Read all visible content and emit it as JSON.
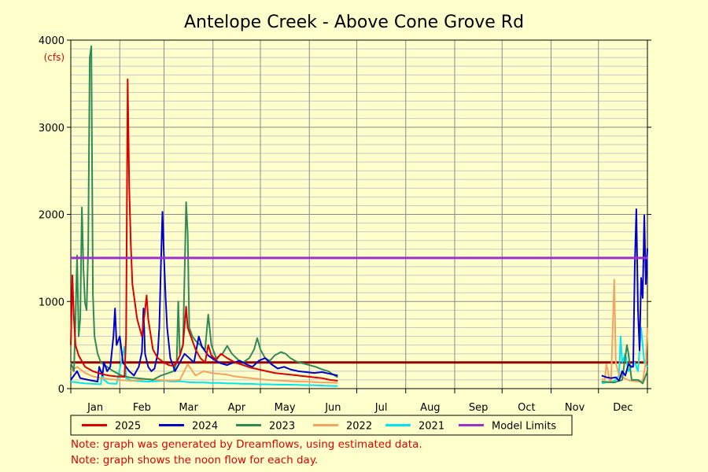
{
  "chart_data": {
    "type": "line",
    "title": "Antelope Creek - Above Cone Grove Rd",
    "ylabel": "(cfs)",
    "xlabel": "",
    "ylim": [
      0,
      4000
    ],
    "yticks": [
      0,
      1000,
      2000,
      3000,
      4000
    ],
    "months": [
      "Jan",
      "Feb",
      "Mar",
      "Apr",
      "May",
      "Jun",
      "Jul",
      "Aug",
      "Sep",
      "Oct",
      "Nov",
      "Dec"
    ],
    "xlim_day": [
      1,
      366
    ],
    "grid": true,
    "legend_position": "bottom",
    "series": [
      {
        "name": "2025",
        "color": "#dd0000",
        "points": [
          [
            1,
            500
          ],
          [
            2,
            1300
          ],
          [
            3,
            800
          ],
          [
            4,
            500
          ],
          [
            6,
            380
          ],
          [
            10,
            250
          ],
          [
            15,
            200
          ],
          [
            20,
            170
          ],
          [
            25,
            150
          ],
          [
            30,
            140
          ],
          [
            35,
            135
          ],
          [
            36,
            600
          ],
          [
            37,
            3550
          ],
          [
            38,
            2300
          ],
          [
            39,
            1650
          ],
          [
            40,
            1200
          ],
          [
            43,
            800
          ],
          [
            46,
            600
          ],
          [
            48,
            900
          ],
          [
            49,
            1070
          ],
          [
            50,
            800
          ],
          [
            53,
            450
          ],
          [
            56,
            350
          ],
          [
            60,
            300
          ],
          [
            63,
            270
          ],
          [
            66,
            260
          ],
          [
            68,
            300
          ],
          [
            70,
            380
          ],
          [
            72,
            500
          ],
          [
            74,
            940
          ],
          [
            75,
            700
          ],
          [
            78,
            550
          ],
          [
            80,
            450
          ],
          [
            83,
            350
          ],
          [
            86,
            300
          ],
          [
            88,
            500
          ],
          [
            90,
            380
          ],
          [
            93,
            330
          ],
          [
            96,
            400
          ],
          [
            100,
            350
          ],
          [
            105,
            300
          ],
          [
            110,
            270
          ],
          [
            115,
            240
          ],
          [
            120,
            220
          ],
          [
            125,
            200
          ],
          [
            130,
            180
          ],
          [
            135,
            170
          ],
          [
            140,
            160
          ],
          [
            145,
            150
          ],
          [
            150,
            140
          ],
          [
            155,
            130
          ],
          [
            160,
            120
          ],
          [
            165,
            100
          ],
          [
            170,
            90
          ]
        ]
      },
      {
        "name": "2024",
        "color": "#0000cc",
        "points": [
          [
            1,
            100
          ],
          [
            3,
            150
          ],
          [
            5,
            200
          ],
          [
            7,
            120
          ],
          [
            12,
            100
          ],
          [
            15,
            90
          ],
          [
            18,
            80
          ],
          [
            19,
            250
          ],
          [
            20,
            200
          ],
          [
            21,
            150
          ],
          [
            22,
            300
          ],
          [
            24,
            200
          ],
          [
            26,
            250
          ],
          [
            28,
            600
          ],
          [
            29,
            920
          ],
          [
            30,
            500
          ],
          [
            32,
            600
          ],
          [
            33,
            450
          ],
          [
            34,
            300
          ],
          [
            38,
            200
          ],
          [
            41,
            150
          ],
          [
            44,
            250
          ],
          [
            46,
            420
          ],
          [
            47,
            920
          ],
          [
            48,
            400
          ],
          [
            50,
            250
          ],
          [
            52,
            200
          ],
          [
            54,
            230
          ],
          [
            56,
            400
          ],
          [
            57,
            700
          ],
          [
            58,
            1400
          ],
          [
            59,
            2030
          ],
          [
            60,
            1500
          ],
          [
            61,
            1050
          ],
          [
            62,
            700
          ],
          [
            64,
            350
          ],
          [
            67,
            200
          ],
          [
            70,
            300
          ],
          [
            73,
            400
          ],
          [
            76,
            350
          ],
          [
            79,
            300
          ],
          [
            82,
            600
          ],
          [
            84,
            480
          ],
          [
            88,
            380
          ],
          [
            92,
            330
          ],
          [
            96,
            290
          ],
          [
            100,
            270
          ],
          [
            104,
            300
          ],
          [
            108,
            320
          ],
          [
            112,
            280
          ],
          [
            116,
            250
          ],
          [
            120,
            320
          ],
          [
            124,
            350
          ],
          [
            128,
            280
          ],
          [
            132,
            230
          ],
          [
            136,
            250
          ],
          [
            140,
            220
          ],
          [
            145,
            200
          ],
          [
            150,
            190
          ],
          [
            155,
            180
          ],
          [
            160,
            190
          ],
          [
            165,
            170
          ],
          [
            170,
            150
          ],
          [
            337,
            150
          ],
          [
            340,
            130
          ],
          [
            343,
            120
          ],
          [
            346,
            130
          ],
          [
            348,
            90
          ],
          [
            350,
            200
          ],
          [
            352,
            150
          ],
          [
            354,
            280
          ],
          [
            356,
            250
          ],
          [
            357,
            250
          ],
          [
            358,
            1400
          ],
          [
            359,
            2060
          ],
          [
            360,
            900
          ],
          [
            361,
            440
          ],
          [
            362,
            1270
          ],
          [
            363,
            1040
          ],
          [
            364,
            1990
          ],
          [
            365,
            1200
          ],
          [
            366,
            1610
          ]
        ]
      },
      {
        "name": "2023",
        "color": "#2e8b57",
        "points": [
          [
            1,
            300
          ],
          [
            2,
            250
          ],
          [
            3,
            200
          ],
          [
            4,
            800
          ],
          [
            5,
            1530
          ],
          [
            6,
            600
          ],
          [
            7,
            800
          ],
          [
            8,
            2080
          ],
          [
            9,
            1370
          ],
          [
            10,
            980
          ],
          [
            11,
            900
          ],
          [
            12,
            1600
          ],
          [
            13,
            3800
          ],
          [
            14,
            3930
          ],
          [
            15,
            1080
          ],
          [
            16,
            600
          ],
          [
            18,
            400
          ],
          [
            20,
            300
          ],
          [
            24,
            250
          ],
          [
            28,
            200
          ],
          [
            33,
            150
          ],
          [
            38,
            130
          ],
          [
            43,
            120
          ],
          [
            48,
            110
          ],
          [
            53,
            100
          ],
          [
            58,
            150
          ],
          [
            63,
            180
          ],
          [
            66,
            200
          ],
          [
            68,
            300
          ],
          [
            69,
            1000
          ],
          [
            70,
            400
          ],
          [
            72,
            500
          ],
          [
            73,
            1300
          ],
          [
            74,
            2140
          ],
          [
            75,
            1780
          ],
          [
            76,
            700
          ],
          [
            78,
            600
          ],
          [
            80,
            550
          ],
          [
            83,
            500
          ],
          [
            86,
            450
          ],
          [
            88,
            850
          ],
          [
            90,
            500
          ],
          [
            93,
            350
          ],
          [
            97,
            400
          ],
          [
            100,
            490
          ],
          [
            103,
            400
          ],
          [
            107,
            330
          ],
          [
            110,
            300
          ],
          [
            114,
            350
          ],
          [
            117,
            450
          ],
          [
            119,
            580
          ],
          [
            121,
            450
          ],
          [
            124,
            350
          ],
          [
            127,
            320
          ],
          [
            130,
            380
          ],
          [
            134,
            420
          ],
          [
            137,
            400
          ],
          [
            140,
            350
          ],
          [
            144,
            310
          ],
          [
            148,
            290
          ],
          [
            152,
            270
          ],
          [
            156,
            250
          ],
          [
            160,
            220
          ],
          [
            164,
            200
          ],
          [
            168,
            150
          ],
          [
            170,
            130
          ],
          [
            337,
            80
          ],
          [
            345,
            70
          ],
          [
            350,
            100
          ],
          [
            353,
            500
          ],
          [
            354,
            400
          ],
          [
            356,
            100
          ],
          [
            360,
            100
          ],
          [
            363,
            60
          ],
          [
            366,
            200
          ]
        ]
      },
      {
        "name": "2022",
        "color": "#f4a460",
        "points": [
          [
            1,
            200
          ],
          [
            5,
            250
          ],
          [
            10,
            180
          ],
          [
            15,
            140
          ],
          [
            20,
            120
          ],
          [
            25,
            110
          ],
          [
            30,
            100
          ],
          [
            35,
            95
          ],
          [
            40,
            90
          ],
          [
            45,
            100
          ],
          [
            50,
            110
          ],
          [
            55,
            100
          ],
          [
            60,
            95
          ],
          [
            65,
            90
          ],
          [
            70,
            100
          ],
          [
            75,
            280
          ],
          [
            80,
            150
          ],
          [
            85,
            200
          ],
          [
            90,
            180
          ],
          [
            95,
            170
          ],
          [
            100,
            160
          ],
          [
            105,
            140
          ],
          [
            110,
            130
          ],
          [
            115,
            120
          ],
          [
            120,
            110
          ],
          [
            125,
            100
          ],
          [
            130,
            95
          ],
          [
            135,
            90
          ],
          [
            140,
            85
          ],
          [
            145,
            80
          ],
          [
            150,
            80
          ],
          [
            155,
            75
          ],
          [
            160,
            70
          ],
          [
            165,
            70
          ],
          [
            170,
            65
          ],
          [
            337,
            110
          ],
          [
            339,
            100
          ],
          [
            340,
            280
          ],
          [
            341,
            200
          ],
          [
            342,
            100
          ],
          [
            343,
            80
          ],
          [
            345,
            1250
          ],
          [
            346,
            300
          ],
          [
            348,
            150
          ],
          [
            350,
            130
          ],
          [
            355,
            90
          ],
          [
            360,
            80
          ],
          [
            363,
            90
          ],
          [
            364,
            200
          ],
          [
            365,
            300
          ],
          [
            366,
            700
          ]
        ]
      },
      {
        "name": "2021",
        "color": "#00e5ee",
        "points": [
          [
            1,
            80
          ],
          [
            5,
            70
          ],
          [
            10,
            60
          ],
          [
            15,
            55
          ],
          [
            20,
            50
          ],
          [
            21,
            200
          ],
          [
            22,
            100
          ],
          [
            25,
            60
          ],
          [
            30,
            55
          ],
          [
            35,
            480
          ],
          [
            36,
            120
          ],
          [
            40,
            90
          ],
          [
            45,
            85
          ],
          [
            50,
            80
          ],
          [
            55,
            85
          ],
          [
            60,
            90
          ],
          [
            65,
            80
          ],
          [
            70,
            85
          ],
          [
            75,
            75
          ],
          [
            80,
            70
          ],
          [
            85,
            70
          ],
          [
            90,
            65
          ],
          [
            95,
            65
          ],
          [
            100,
            60
          ],
          [
            105,
            60
          ],
          [
            110,
            55
          ],
          [
            115,
            55
          ],
          [
            120,
            50
          ],
          [
            125,
            50
          ],
          [
            130,
            48
          ],
          [
            135,
            45
          ],
          [
            140,
            45
          ],
          [
            145,
            42
          ],
          [
            150,
            40
          ],
          [
            155,
            40
          ],
          [
            160,
            35
          ],
          [
            165,
            32
          ],
          [
            170,
            30
          ],
          [
            337,
            60
          ],
          [
            340,
            70
          ],
          [
            344,
            80
          ],
          [
            346,
            100
          ],
          [
            348,
            150
          ],
          [
            349,
            600
          ],
          [
            350,
            300
          ],
          [
            352,
            400
          ],
          [
            354,
            200
          ],
          [
            356,
            250
          ],
          [
            358,
            300
          ],
          [
            360,
            200
          ],
          [
            362,
            700
          ],
          [
            364,
            300
          ],
          [
            366,
            250
          ]
        ]
      },
      {
        "name": "Model Limits",
        "color": "#9932cc",
        "points": [
          [
            1,
            1500
          ],
          [
            366,
            1500
          ]
        ]
      }
    ],
    "limit_line": {
      "value": 300,
      "color": "#990000"
    }
  },
  "legend_items": [
    {
      "label": "2025",
      "color": "#dd0000"
    },
    {
      "label": "2024",
      "color": "#0000cc"
    },
    {
      "label": "2023",
      "color": "#2e8b57"
    },
    {
      "label": "2022",
      "color": "#f4a460"
    },
    {
      "label": "2021",
      "color": "#00e5ee"
    },
    {
      "label": "Model Limits",
      "color": "#9932cc"
    }
  ],
  "notes": {
    "line1": "Note: graph was generated by Dreamflows, using estimated data.",
    "line2": "Note: graph shows the noon flow for each day."
  }
}
